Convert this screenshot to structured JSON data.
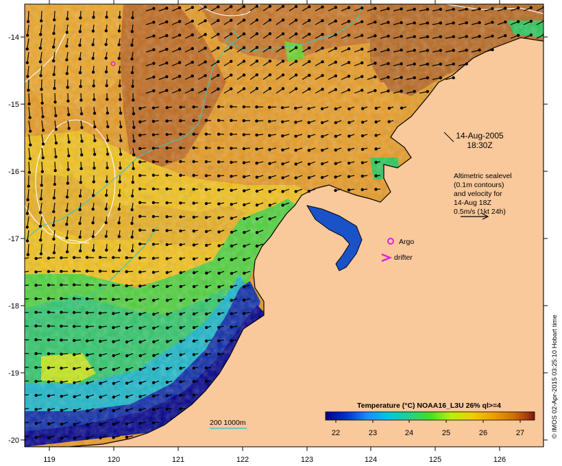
{
  "map": {
    "lon_ticks": [
      "119",
      "120",
      "121",
      "122",
      "123",
      "124",
      "125",
      "126"
    ],
    "lat_ticks": [
      "-14",
      "-15",
      "-16",
      "-17",
      "-18",
      "-19",
      "-20"
    ],
    "lon_range": [
      118.65,
      126.65
    ],
    "lat_range": [
      -13.65,
      -20.05
    ],
    "date": "14-Aug-2005",
    "time": "18:30Z",
    "altimetry_note": [
      "Altimetric sealevel",
      "(0.1m contours)",
      "and velocity for",
      "14-Aug 18Z",
      "0.5m/s (1kt 24h)"
    ],
    "legend_argo": "Argo",
    "legend_drifter": "drifter",
    "bathymetry_label": "200  1000m",
    "colorbar_title": "Temperature (°C) NOAA16_L3U 26% ql>=4",
    "colorbar_ticks": [
      "22",
      "23",
      "24",
      "25",
      "26",
      "27"
    ],
    "copyright": "© IMOS 02-Apr-2015 03:25:10 Hobart time",
    "colors": {
      "land": "#f9c89b",
      "coast": "#000000",
      "contour": "#ffffff",
      "bathymetry": "#3cc7c0",
      "argo": "#e020e0",
      "drifter": "#e020e0"
    },
    "scale_colors": [
      "#00008b",
      "#0033cc",
      "#1a8cff",
      "#00c8e0",
      "#20d090",
      "#44e020",
      "#b8ee10",
      "#f0d000",
      "#f0a000",
      "#d07000",
      "#a84010",
      "#7a1808"
    ]
  }
}
